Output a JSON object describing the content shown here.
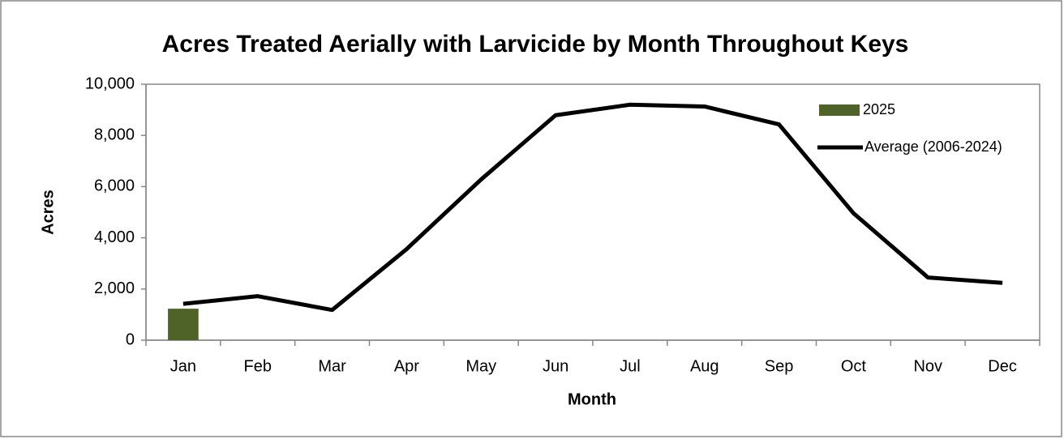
{
  "chart_data": {
    "type": "bar+line",
    "title": "Acres Treated Aerially with Larvicide by Month Throughout Keys",
    "x_label": "Month",
    "y_label": "Acres",
    "categories": [
      "Jan",
      "Feb",
      "Mar",
      "Apr",
      "May",
      "Jun",
      "Jul",
      "Aug",
      "Sep",
      "Oct",
      "Nov",
      "Dec"
    ],
    "series": [
      {
        "name": "2025",
        "type": "bar",
        "color": "#4f6228",
        "values": [
          1230,
          null,
          null,
          null,
          null,
          null,
          null,
          null,
          null,
          null,
          null,
          null
        ]
      },
      {
        "name": "Average (2006-2024)",
        "type": "line",
        "color": "#000000",
        "values": [
          1420,
          1720,
          1180,
          3560,
          6280,
          8790,
          9200,
          9130,
          8430,
          4960,
          2450,
          2240
        ]
      }
    ],
    "ylim": [
      0,
      10000
    ],
    "yticks": [
      0,
      {
        "value": 2000,
        "label": "2,000"
      },
      {
        "value": 4000,
        "label": "4,000"
      },
      {
        "value": 6000,
        "label": "6,000"
      },
      {
        "value": 8000,
        "label": "8,000"
      },
      {
        "value": 10000,
        "label": "10,000"
      }
    ],
    "grid": false,
    "legend": "top-right"
  }
}
